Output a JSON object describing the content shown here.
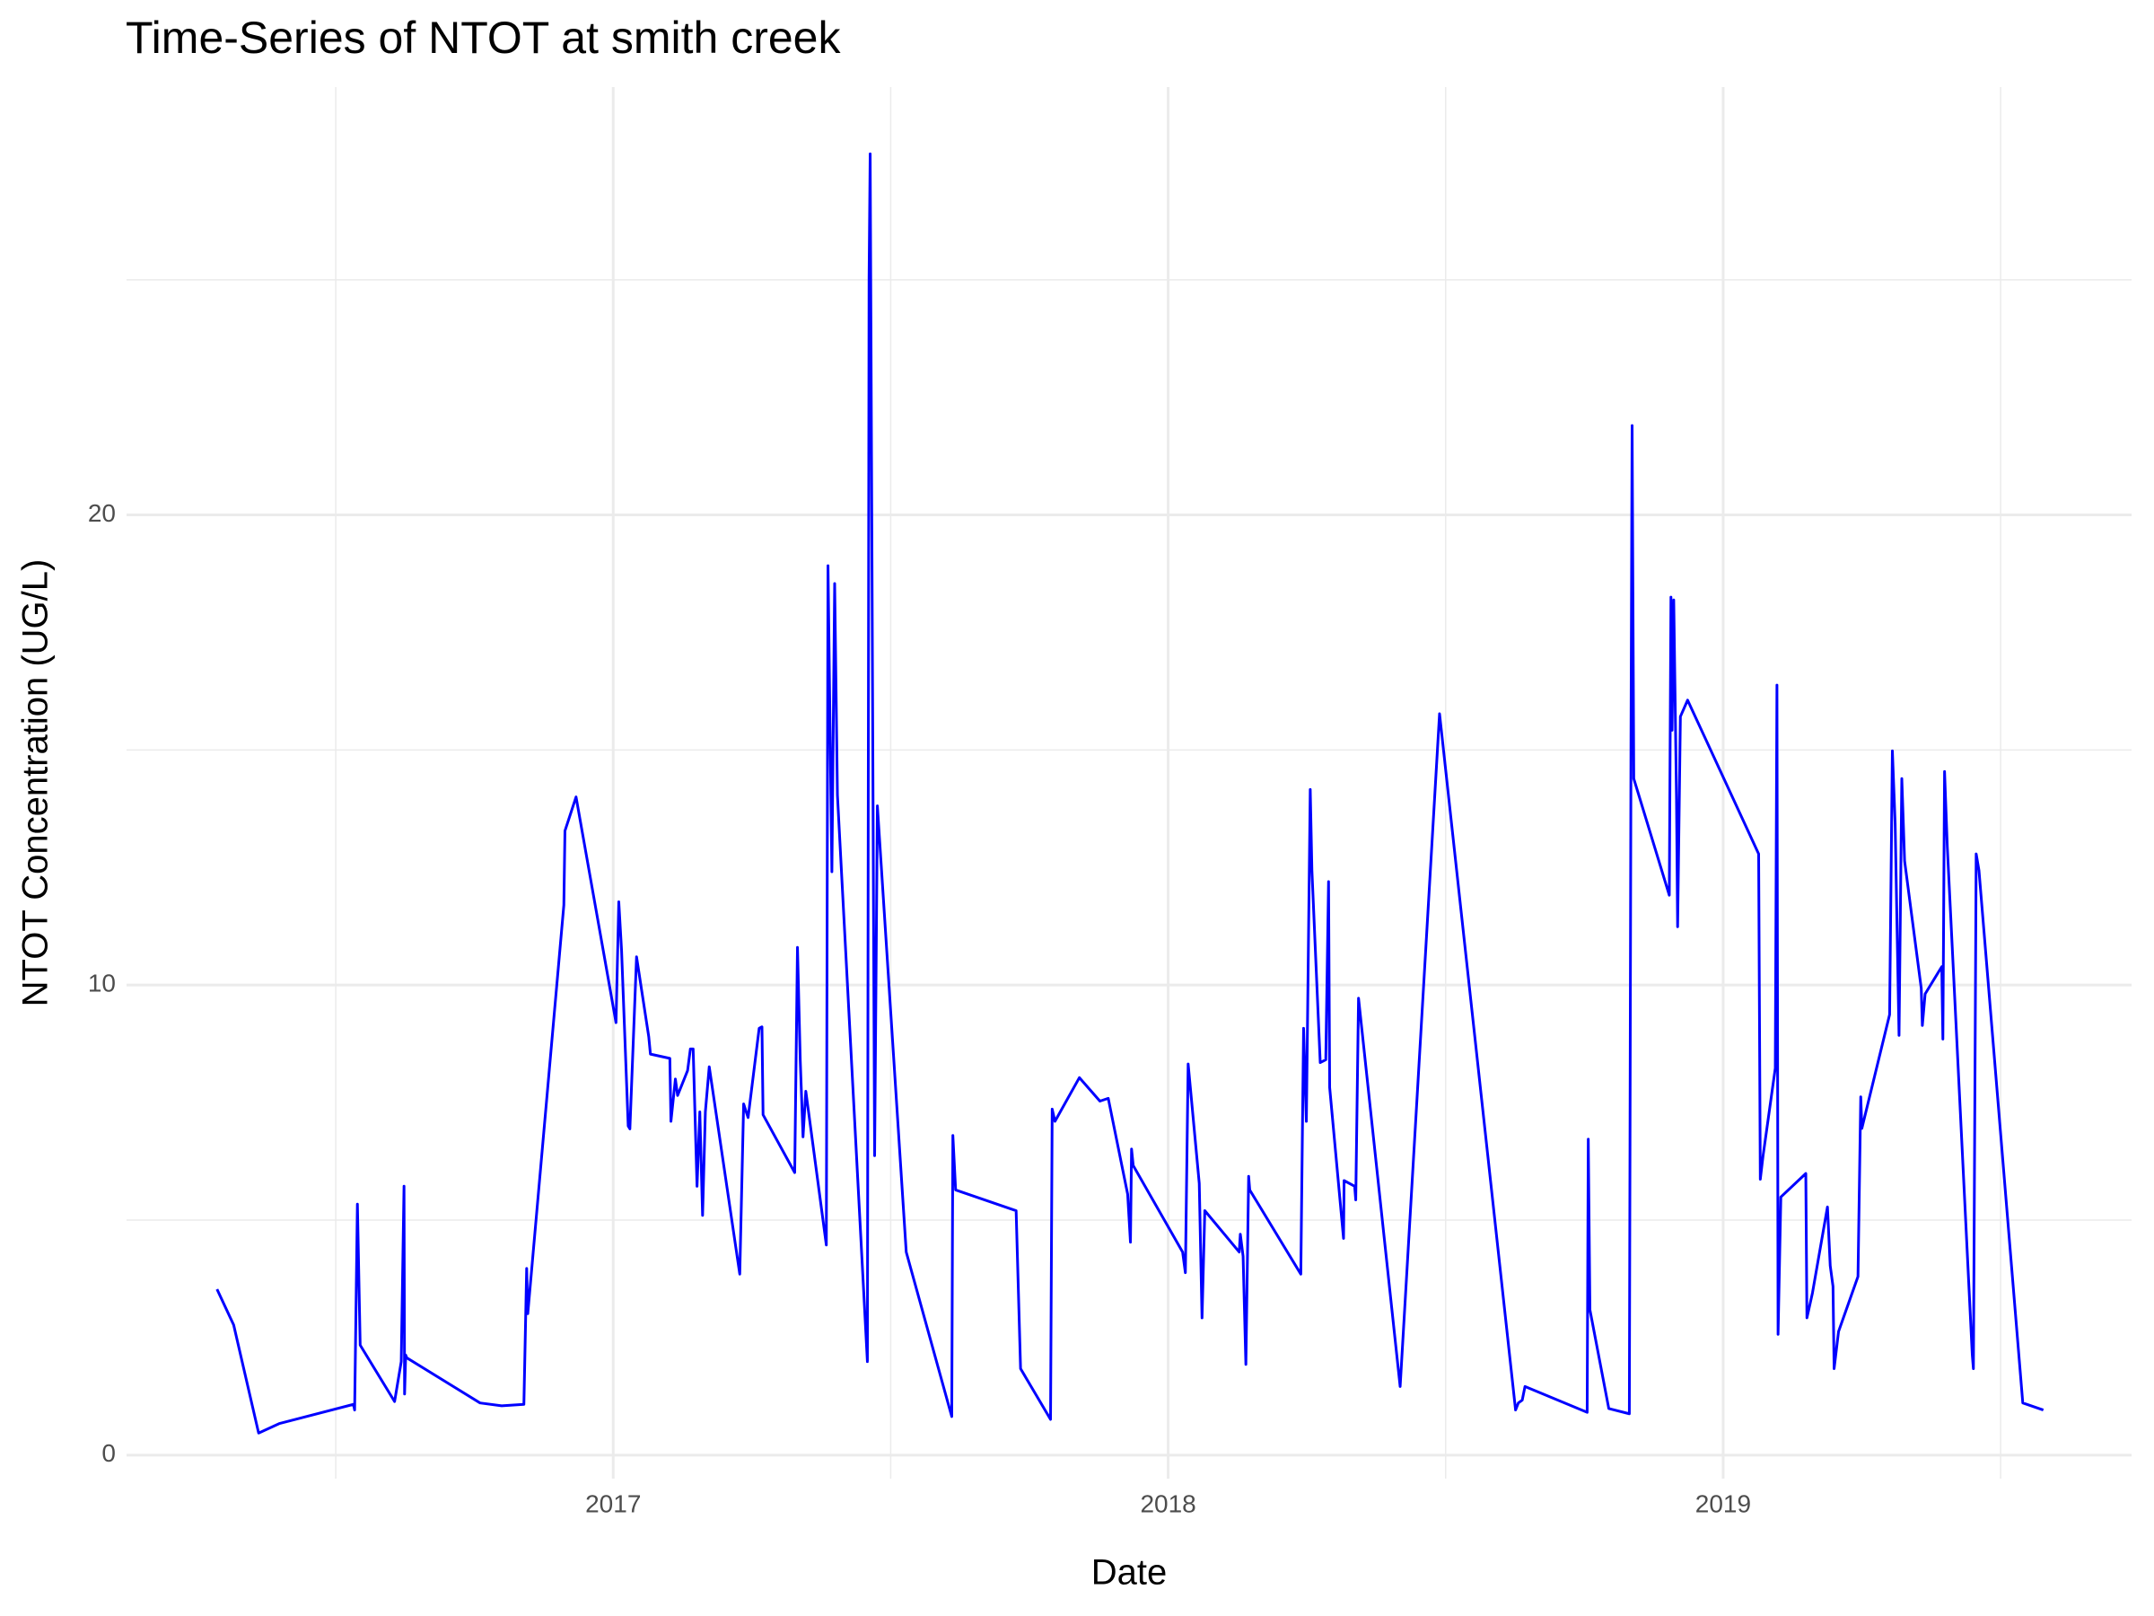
{
  "chart_data": {
    "type": "line",
    "title": "Time-Series of NTOT at smith creek",
    "x_label": "Date",
    "y_label": "NTOT Concentration (UG/L)",
    "color": "#0000ff",
    "x": [
      2016.286,
      2016.316,
      2016.361,
      2016.398,
      2016.532,
      2016.534,
      2016.539,
      2016.544,
      2016.606,
      2016.618,
      2016.623,
      2016.624,
      2016.626,
      2016.628,
      2016.76,
      2016.799,
      2016.839,
      2016.844,
      2016.846,
      2016.911,
      2016.913,
      2016.933,
      2017.005,
      2017.01,
      2017.015,
      2017.027,
      2017.03,
      2017.042,
      2017.064,
      2017.067,
      2017.102,
      2017.104,
      2017.112,
      2017.116,
      2017.134,
      2017.139,
      2017.144,
      2017.151,
      2017.156,
      2017.161,
      2017.166,
      2017.173,
      2017.228,
      2017.235,
      2017.243,
      2017.263,
      2017.268,
      2017.27,
      2017.327,
      2017.332,
      2017.337,
      2017.342,
      2017.347,
      2017.384,
      2017.387,
      2017.394,
      2017.399,
      2017.404,
      2017.458,
      2017.461,
      2017.463,
      2017.471,
      2017.476,
      2017.528,
      2017.61,
      2017.612,
      2017.617,
      2017.726,
      2017.734,
      2017.788,
      2017.791,
      2017.796,
      2017.84,
      2017.877,
      2017.892,
      2017.927,
      2017.932,
      2017.934,
      2017.937,
      2018.026,
      2018.031,
      2018.036,
      2018.056,
      2018.061,
      2018.066,
      2018.128,
      2018.13,
      2018.135,
      2018.14,
      2018.145,
      2018.147,
      2018.239,
      2018.244,
      2018.249,
      2018.256,
      2018.259,
      2018.274,
      2018.284,
      2018.289,
      2018.291,
      2018.316,
      2018.317,
      2018.336,
      2018.338,
      2018.343,
      2018.418,
      2018.489,
      2018.626,
      2018.631,
      2018.638,
      2018.643,
      2018.755,
      2018.757,
      2018.76,
      2018.794,
      2018.831,
      2018.834,
      2018.836,
      2018.839,
      2018.903,
      2018.906,
      2018.908,
      2018.911,
      2018.916,
      2018.918,
      2018.923,
      2018.936,
      2019.064,
      2019.067,
      2019.072,
      2019.094,
      2019.097,
      2019.099,
      2019.104,
      2019.149,
      2019.151,
      2019.161,
      2019.188,
      2019.193,
      2019.198,
      2019.2,
      2019.208,
      2019.243,
      2019.248,
      2019.25,
      2019.3,
      2019.305,
      2019.31,
      2019.317,
      2019.322,
      2019.327,
      2019.357,
      2019.359,
      2019.364,
      2019.394,
      2019.396,
      2019.399,
      2019.404,
      2019.449,
      2019.451,
      2019.456,
      2019.461,
      2019.54,
      2019.577
    ],
    "values": [
      3.53,
      2.77,
      0.47,
      0.67,
      1.08,
      0.96,
      5.34,
      2.34,
      1.14,
      1.99,
      5.72,
      1.3,
      2.13,
      2.07,
      1.11,
      1.05,
      1.08,
      3.97,
      3.01,
      11.7,
      13.28,
      14.0,
      9.2,
      11.77,
      10.74,
      7.0,
      6.94,
      10.6,
      8.9,
      8.53,
      8.44,
      7.1,
      8.0,
      7.65,
      8.18,
      8.64,
      8.64,
      5.72,
      7.3,
      5.1,
      7.3,
      8.26,
      3.85,
      7.47,
      7.18,
      9.08,
      9.11,
      7.24,
      6.01,
      10.8,
      8.4,
      6.77,
      7.74,
      4.47,
      18.92,
      12.41,
      18.54,
      14.04,
      1.99,
      25.05,
      27.68,
      6.37,
      13.81,
      4.32,
      0.82,
      6.8,
      5.64,
      5.2,
      1.84,
      0.76,
      7.36,
      7.1,
      8.03,
      7.53,
      7.59,
      5.55,
      4.53,
      6.51,
      6.16,
      4.32,
      3.88,
      8.32,
      5.78,
      2.92,
      5.2,
      4.32,
      4.7,
      4.23,
      1.93,
      5.93,
      5.64,
      3.85,
      9.08,
      7.1,
      14.16,
      12.44,
      8.35,
      8.41,
      12.2,
      7.82,
      4.61,
      5.84,
      5.72,
      5.43,
      9.72,
      1.46,
      15.77,
      0.96,
      1.11,
      1.17,
      1.46,
      0.91,
      6.72,
      3.09,
      0.99,
      0.88,
      15.27,
      21.9,
      14.39,
      11.91,
      18.25,
      15.42,
      18.19,
      13.96,
      11.24,
      15.71,
      16.06,
      12.79,
      5.87,
      6.37,
      8.23,
      16.38,
      2.57,
      5.49,
      5.99,
      2.92,
      3.45,
      5.28,
      4.03,
      3.59,
      1.84,
      2.63,
      3.8,
      7.62,
      6.95,
      9.37,
      14.98,
      13.43,
      8.93,
      14.39,
      12.64,
      9.93,
      9.14,
      9.81,
      10.39,
      8.85,
      14.54,
      12.93,
      2.13,
      1.84,
      12.79,
      12.44,
      1.11,
      0.96
    ],
    "xlim": [
      2016.123,
      2019.736
    ],
    "ylim": [
      -0.5,
      29.1
    ],
    "xticks": [
      2017,
      2018,
      2019
    ],
    "yticks": [
      0,
      10,
      20
    ],
    "x_minor_grid": [
      2016.5,
      2017.5,
      2018.5,
      2019.5
    ],
    "y_minor_grid": [
      5,
      15,
      25
    ],
    "grid": true
  }
}
